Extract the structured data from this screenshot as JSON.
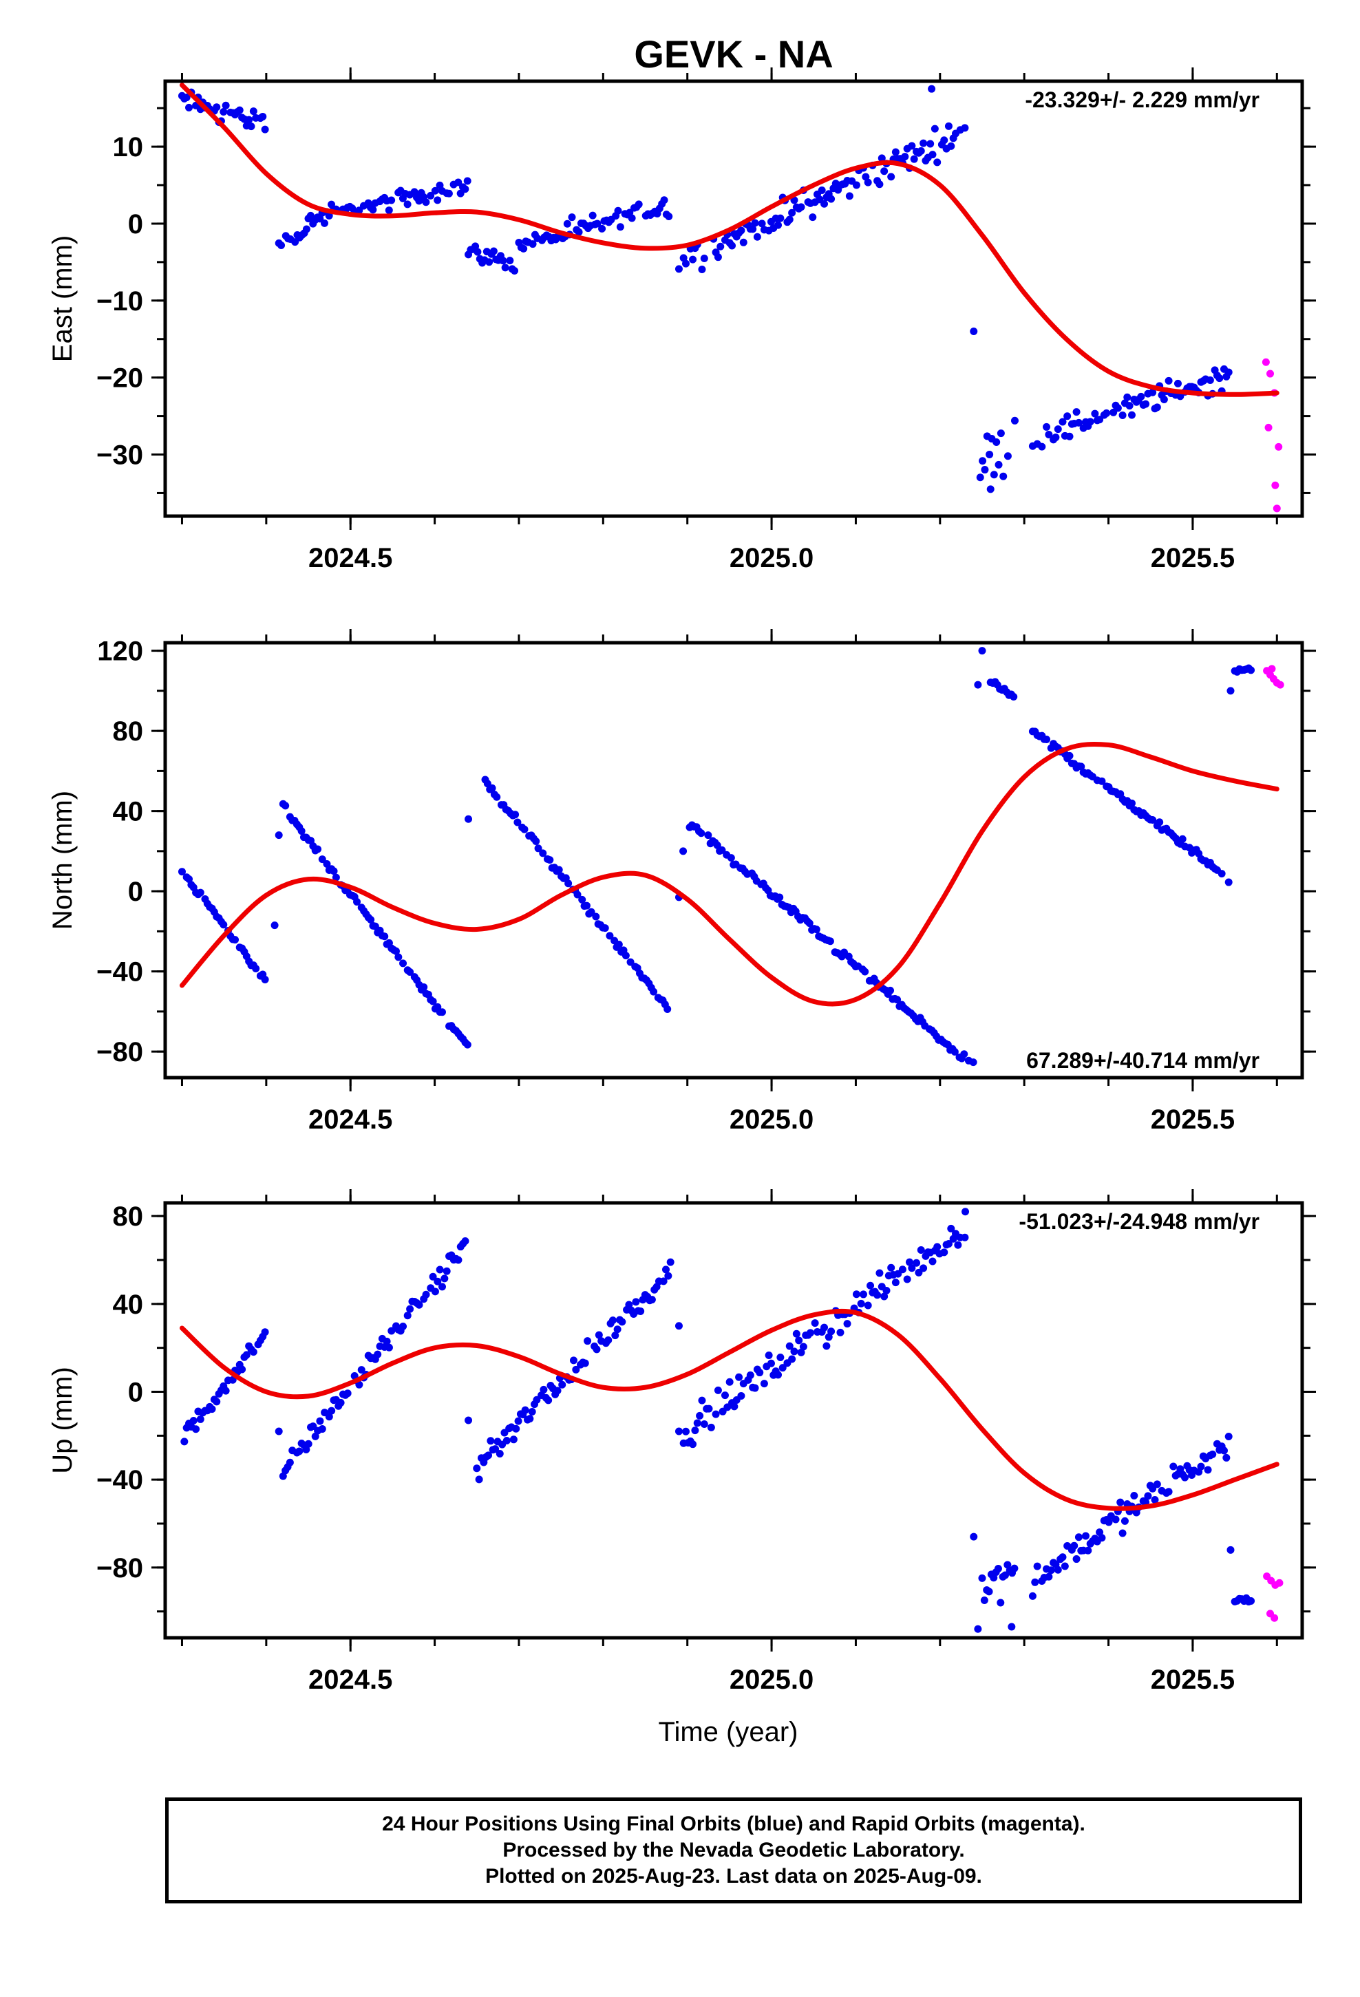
{
  "title": "GEVK - NA",
  "footer": {
    "lines": [
      "24 Hour Positions Using Final Orbits (blue) and Rapid Orbits (magenta).",
      "Processed by the Nevada Geodetic Laboratory.",
      "Plotted on 2025-Aug-23. Last data on 2025-Aug-09."
    ]
  },
  "colors": {
    "final": "#0000ee",
    "rapid": "#ff00ff",
    "fit": "#ee0000"
  },
  "chart_data": [
    {
      "type": "scatter",
      "ylabel": "East (mm)",
      "xlabel": "",
      "rate_label": "-23.329+/- 2.229 mm/yr",
      "rate_position": "top-right",
      "xlim": [
        2024.28,
        2025.63
      ],
      "ylim": [
        -38,
        18.5
      ],
      "xticks": [
        2024.5,
        2025.0,
        2025.5
      ],
      "xtick_labels": [
        "2024.5",
        "2025.0",
        "2025.5"
      ],
      "yticks": [
        10,
        0,
        -10,
        -20,
        -30
      ],
      "ytick_labels": [
        "10",
        "0",
        "−10",
        "−20",
        "−30"
      ],
      "series": [
        {
          "kind": "final",
          "segments": [
            {
              "x": [
                2024.3,
                2024.4
              ],
              "y": [
                16,
                13
              ],
              "noise": 1.2
            },
            {
              "x": [
                2024.415,
                2024.45
              ],
              "y": [
                -2.5,
                -1
              ],
              "noise": 0.7
            },
            {
              "x": [
                2024.45,
                2024.64
              ],
              "y": [
                0.5,
                5
              ],
              "noise": 1.0
            },
            {
              "x": [
                2024.64,
                2024.7
              ],
              "y": [
                -3.5,
                -5.5
              ],
              "noise": 0.9
            },
            {
              "x": [
                2024.7,
                2024.88
              ],
              "y": [
                -3,
                2.5
              ],
              "noise": 1.2
            },
            {
              "x": [
                2024.89,
                2025.23
              ],
              "y": [
                -5,
                12
              ],
              "noise": 1.6
            },
            {
              "x": [
                2025.245,
                2025.29
              ],
              "y": [
                -32,
                -27
              ],
              "noise": 3.0
            },
            {
              "x": [
                2025.31,
                2025.545
              ],
              "y": [
                -28,
                -19.5
              ],
              "noise": 1.5
            }
          ],
          "points": [
            {
              "x": 2025.24,
              "y": -14
            },
            {
              "x": 2025.19,
              "y": 17.5
            },
            {
              "x": 2025.26,
              "y": -34.5
            }
          ]
        },
        {
          "kind": "rapid",
          "points": [
            {
              "x": 2025.587,
              "y": -18
            },
            {
              "x": 2025.592,
              "y": -19.5
            },
            {
              "x": 2025.597,
              "y": -22
            },
            {
              "x": 2025.59,
              "y": -26.5
            },
            {
              "x": 2025.602,
              "y": -29
            },
            {
              "x": 2025.598,
              "y": -34
            },
            {
              "x": 2025.6,
              "y": -37
            }
          ]
        }
      ],
      "fit": {
        "x": [
          2024.3,
          2024.35,
          2024.4,
          2024.45,
          2024.5,
          2024.55,
          2024.6,
          2024.65,
          2024.7,
          2024.75,
          2024.8,
          2024.85,
          2024.9,
          2024.95,
          2025.0,
          2025.05,
          2025.1,
          2025.15,
          2025.2,
          2025.25,
          2025.3,
          2025.35,
          2025.4,
          2025.45,
          2025.5,
          2025.55,
          2025.6
        ],
        "y": [
          18,
          12.5,
          6.5,
          2.5,
          1.2,
          1.0,
          1.4,
          1.5,
          0.5,
          -1.2,
          -2.5,
          -3.2,
          -2.8,
          -0.8,
          2.2,
          5.0,
          7.2,
          7.8,
          5.0,
          -1.5,
          -9,
          -15,
          -19.2,
          -21.2,
          -22.0,
          -22.2,
          -22.0
        ]
      }
    },
    {
      "type": "scatter",
      "ylabel": "North (mm)",
      "xlabel": "",
      "rate_label": "67.289+/-40.714 mm/yr",
      "rate_position": "bottom-right",
      "xlim": [
        2024.28,
        2025.63
      ],
      "ylim": [
        -93,
        124
      ],
      "xticks": [
        2024.5,
        2025.0,
        2025.5
      ],
      "xtick_labels": [
        "2024.5",
        "2025.0",
        "2025.5"
      ],
      "yticks": [
        120,
        80,
        40,
        0,
        -40,
        -80
      ],
      "ytick_labels": [
        "120",
        "80",
        "40",
        "0",
        "−40",
        "−80"
      ],
      "series": [
        {
          "kind": "final",
          "segments": [
            {
              "x": [
                2024.3,
                2024.4
              ],
              "y": [
                10,
                -45
              ],
              "noise": 1.5
            },
            {
              "x": [
                2024.42,
                2024.64
              ],
              "y": [
                42,
                -78
              ],
              "noise": 1.5
            },
            {
              "x": [
                2024.66,
                2024.88
              ],
              "y": [
                55,
                -60
              ],
              "noise": 1.5
            },
            {
              "x": [
                2024.9,
                2025.24
              ],
              "y": [
                35,
                -88
              ],
              "noise": 1.8
            },
            {
              "x": [
                2025.26,
                2025.29
              ],
              "y": [
                105,
                96
              ],
              "noise": 1.0
            },
            {
              "x": [
                2025.31,
                2025.545
              ],
              "y": [
                80,
                6
              ],
              "noise": 1.8
            },
            {
              "x": [
                2025.55,
                2025.57
              ],
              "y": [
                110,
                111
              ],
              "noise": 1.0
            }
          ],
          "points": [
            {
              "x": 2024.41,
              "y": -17
            },
            {
              "x": 2024.415,
              "y": 28
            },
            {
              "x": 2024.64,
              "y": 36
            },
            {
              "x": 2024.89,
              "y": -3
            },
            {
              "x": 2024.895,
              "y": 20
            },
            {
              "x": 2025.25,
              "y": 120
            },
            {
              "x": 2025.245,
              "y": 103
            },
            {
              "x": 2025.545,
              "y": 100
            }
          ]
        },
        {
          "kind": "rapid",
          "points": [
            {
              "x": 2025.588,
              "y": 110
            },
            {
              "x": 2025.592,
              "y": 108
            },
            {
              "x": 2025.596,
              "y": 106
            },
            {
              "x": 2025.6,
              "y": 104
            },
            {
              "x": 2025.604,
              "y": 103
            },
            {
              "x": 2025.594,
              "y": 111
            }
          ]
        }
      ],
      "fit": {
        "x": [
          2024.3,
          2024.35,
          2024.4,
          2024.45,
          2024.5,
          2024.55,
          2024.6,
          2024.65,
          2024.7,
          2024.75,
          2024.8,
          2024.85,
          2024.9,
          2024.95,
          2025.0,
          2025.05,
          2025.1,
          2025.15,
          2025.2,
          2025.25,
          2025.3,
          2025.35,
          2025.4,
          2025.45,
          2025.5,
          2025.55,
          2025.6
        ],
        "y": [
          -47,
          -22,
          -2,
          6,
          2,
          -8,
          -16,
          -19,
          -14,
          -2,
          7,
          8,
          -4,
          -24,
          -43,
          -55,
          -54,
          -38,
          -6,
          30,
          57,
          71,
          73,
          67,
          60,
          55,
          51
        ]
      }
    },
    {
      "type": "scatter",
      "ylabel": "Up (mm)",
      "xlabel": "Time (year)",
      "rate_label": "-51.023+/-24.948 mm/yr",
      "rate_position": "top-right",
      "xlim": [
        2024.28,
        2025.63
      ],
      "ylim": [
        -112,
        86
      ],
      "xticks": [
        2024.5,
        2025.0,
        2025.5
      ],
      "xtick_labels": [
        "2024.5",
        "2025.0",
        "2025.5"
      ],
      "yticks": [
        80,
        40,
        0,
        -40,
        -80
      ],
      "ytick_labels": [
        "80",
        "40",
        "0",
        "−40",
        "−80"
      ],
      "series": [
        {
          "kind": "final",
          "segments": [
            {
              "x": [
                2024.3,
                2024.4
              ],
              "y": [
                -22,
                27
              ],
              "noise": 3.5
            },
            {
              "x": [
                2024.42,
                2024.64
              ],
              "y": [
                -36,
                68
              ],
              "noise": 4.0
            },
            {
              "x": [
                2024.65,
                2024.88
              ],
              "y": [
                -34,
                55
              ],
              "noise": 4.5
            },
            {
              "x": [
                2024.89,
                2025.23
              ],
              "y": [
                -20,
                75
              ],
              "noise": 6.0
            },
            {
              "x": [
                2025.25,
                2025.29
              ],
              "y": [
                -90,
                -80
              ],
              "noise": 8.0
            },
            {
              "x": [
                2025.31,
                2025.545
              ],
              "y": [
                -85,
                -22
              ],
              "noise": 5.5
            },
            {
              "x": [
                2025.55,
                2025.57
              ],
              "y": [
                -95,
                -95
              ],
              "noise": 2.0
            }
          ],
          "points": [
            {
              "x": 2024.415,
              "y": -18
            },
            {
              "x": 2024.64,
              "y": -13
            },
            {
              "x": 2024.89,
              "y": 30
            },
            {
              "x": 2025.24,
              "y": -66
            },
            {
              "x": 2025.245,
              "y": -108
            },
            {
              "x": 2025.285,
              "y": -107
            },
            {
              "x": 2025.23,
              "y": 82
            },
            {
              "x": 2025.545,
              "y": -72
            }
          ]
        },
        {
          "kind": "rapid",
          "points": [
            {
              "x": 2025.588,
              "y": -84
            },
            {
              "x": 2025.593,
              "y": -86
            },
            {
              "x": 2025.598,
              "y": -88
            },
            {
              "x": 2025.603,
              "y": -87
            },
            {
              "x": 2025.592,
              "y": -101
            },
            {
              "x": 2025.597,
              "y": -103
            }
          ]
        }
      ],
      "fit": {
        "x": [
          2024.3,
          2024.35,
          2024.4,
          2024.45,
          2024.5,
          2024.55,
          2024.6,
          2024.65,
          2024.7,
          2024.75,
          2024.8,
          2024.85,
          2024.9,
          2024.95,
          2025.0,
          2025.05,
          2025.1,
          2025.15,
          2025.2,
          2025.25,
          2025.3,
          2025.35,
          2025.4,
          2025.45,
          2025.5,
          2025.55,
          2025.6
        ],
        "y": [
          29,
          11,
          0,
          -2,
          4,
          13,
          20,
          21,
          16,
          8,
          2,
          2,
          8,
          18,
          28,
          35,
          36,
          26,
          6,
          -17,
          -37,
          -49,
          -53,
          -52,
          -47,
          -40,
          -33
        ]
      }
    }
  ]
}
